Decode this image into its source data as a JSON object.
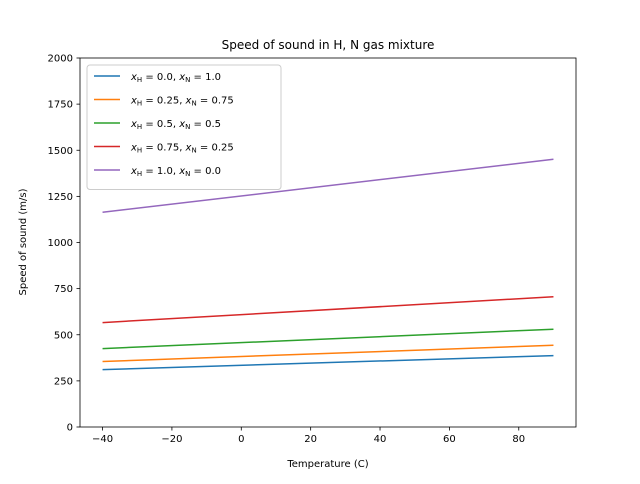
{
  "chart_data": {
    "type": "line",
    "title": "Speed of sound in H, N gas mixture",
    "xlabel": "Temperature (C)",
    "ylabel": "Speed of sound (m/s)",
    "xlim": [
      -46.5,
      96.5
    ],
    "ylim": [
      0,
      2000
    ],
    "xticks": [
      -40,
      -20,
      0,
      20,
      40,
      60,
      80
    ],
    "xtick_labels": [
      "−40",
      "−20",
      "0",
      "20",
      "40",
      "60",
      "80"
    ],
    "yticks": [
      0,
      250,
      500,
      750,
      1000,
      1250,
      1500,
      1750,
      2000
    ],
    "ytick_labels": [
      "0",
      "250",
      "500",
      "750",
      "1000",
      "1250",
      "1500",
      "1750",
      "2000"
    ],
    "grid": false,
    "legend_position": "top-left",
    "x": [
      -40,
      90
    ],
    "series": [
      {
        "name": "x_H = 0.0, x_N = 1.0",
        "legend_parts": {
          "h": "0.0",
          "n": "1.0"
        },
        "color": "#1f77b4",
        "values": [
          311,
          387
        ]
      },
      {
        "name": "x_H = 0.25, x_N = 0.75",
        "legend_parts": {
          "h": "0.25",
          "n": "0.75"
        },
        "color": "#ff7f0e",
        "values": [
          355,
          443
        ]
      },
      {
        "name": "x_H = 0.5, x_N = 0.5",
        "legend_parts": {
          "h": "0.5",
          "n": "0.5"
        },
        "color": "#2ca02c",
        "values": [
          425,
          530
        ]
      },
      {
        "name": "x_H = 0.75, x_N = 0.25",
        "legend_parts": {
          "h": "0.75",
          "n": "0.25"
        },
        "color": "#d62728",
        "values": [
          566,
          706
        ]
      },
      {
        "name": "x_H = 1.0, x_N = 0.0",
        "legend_parts": {
          "h": "1.0",
          "n": "0.0"
        },
        "color": "#9467bd",
        "values": [
          1164,
          1451
        ]
      }
    ]
  }
}
